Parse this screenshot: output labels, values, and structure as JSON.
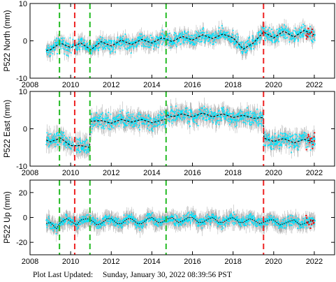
{
  "colors": {
    "observations": "#00e5ff",
    "error_bars": "#a9a9a9",
    "model_fit": "#000000",
    "recent_points": "#ff0000",
    "equipment_change_lines": "#22bb22",
    "earthquake_lines": "#ee2222",
    "frame": "#000000"
  },
  "chart_data": [
    {
      "type": "scatter",
      "station": "P522",
      "ylabel": "P522 North (mm)",
      "xlim": [
        2008,
        2023
      ],
      "ylim": [
        -10,
        10
      ],
      "yticks": [
        "10",
        "0",
        "-10"
      ],
      "xticks": [
        "2008",
        "2010",
        "2012",
        "2014",
        "2016",
        "2018",
        "2020",
        "2022"
      ],
      "grid": false,
      "series": [
        {
          "role": "model-fit",
          "style": "dashed",
          "x": [
            2008.8,
            2009.0,
            2009.5,
            2010.0,
            2010.5,
            2011.0,
            2011.5,
            2012.0,
            2012.5,
            2013.0,
            2013.5,
            2014.0,
            2014.5,
            2015.0,
            2015.5,
            2016.0,
            2016.5,
            2017.0,
            2017.5,
            2018.0,
            2018.5,
            2019.0,
            2019.5,
            2020.0,
            2020.5,
            2021.0,
            2021.5,
            2022.0
          ],
          "y": [
            -2.6,
            -2.4,
            -0.6,
            -1.8,
            -0.6,
            -2.4,
            -0.2,
            -1.4,
            0.2,
            -1.0,
            0.4,
            -0.6,
            0.8,
            -0.2,
            1.2,
            0.2,
            1.6,
            0.6,
            1.8,
            0.8,
            -2.2,
            -0.6,
            2.4,
            0.8,
            2.6,
            1.0,
            2.8,
            1.6
          ]
        },
        {
          "role": "observations",
          "spread": 1.6,
          "error": 1.6
        }
      ],
      "event_lines": [
        {
          "x": 2009.45,
          "kind": "equipment-change"
        },
        {
          "x": 2010.2,
          "kind": "earthquake"
        },
        {
          "x": 2010.95,
          "kind": "equipment-change"
        },
        {
          "x": 2014.7,
          "kind": "equipment-change"
        },
        {
          "x": 2019.5,
          "kind": "earthquake"
        }
      ]
    },
    {
      "type": "scatter",
      "station": "P522",
      "ylabel": "P522 East (mm)",
      "xlim": [
        2008,
        2023
      ],
      "ylim": [
        -10,
        10
      ],
      "yticks": [
        "10",
        "0",
        "-10"
      ],
      "xticks": [
        "2008",
        "2010",
        "2012",
        "2014",
        "2016",
        "2018",
        "2020",
        "2022"
      ],
      "grid": false,
      "series": [
        {
          "role": "model-fit",
          "style": "dashed",
          "x": [
            2008.8,
            2009.0,
            2009.5,
            2010.0,
            2010.5,
            2010.94,
            2010.96,
            2011.5,
            2012.0,
            2012.5,
            2013.0,
            2013.5,
            2014.0,
            2014.69,
            2014.71,
            2015.0,
            2015.5,
            2016.0,
            2016.5,
            2017.0,
            2017.5,
            2018.0,
            2018.5,
            2019.0,
            2019.49,
            2019.51,
            2020.0,
            2020.5,
            2021.0,
            2021.5,
            2022.0
          ],
          "y": [
            -3.0,
            -3.5,
            -2.5,
            -4.5,
            -4.5,
            -5.0,
            2.0,
            2.2,
            1.5,
            2.5,
            1.8,
            2.5,
            1.6,
            2.6,
            3.8,
            3.2,
            4.0,
            3.2,
            4.2,
            3.2,
            4.0,
            3.0,
            3.6,
            2.8,
            3.0,
            -2.5,
            -3.4,
            -2.6,
            -3.8,
            -2.8,
            -3.6
          ]
        },
        {
          "role": "observations",
          "spread": 1.8,
          "error": 2.0
        }
      ],
      "event_lines": [
        {
          "x": 2009.45,
          "kind": "equipment-change"
        },
        {
          "x": 2010.2,
          "kind": "earthquake"
        },
        {
          "x": 2010.95,
          "kind": "equipment-change"
        },
        {
          "x": 2014.7,
          "kind": "equipment-change"
        },
        {
          "x": 2019.5,
          "kind": "earthquake"
        }
      ]
    },
    {
      "type": "scatter",
      "station": "P522",
      "ylabel": "P522 Up (mm)",
      "xlim": [
        2008,
        2023
      ],
      "ylim": [
        -30,
        30
      ],
      "yticks": [
        "20",
        "0",
        "-20"
      ],
      "xticks": [
        "2008",
        "2010",
        "2012",
        "2014",
        "2016",
        "2018",
        "2020",
        "2022"
      ],
      "grid": false,
      "series": [
        {
          "role": "model-fit",
          "style": "dotted",
          "x": [
            2008.8,
            2009.0,
            2009.3,
            2009.5,
            2009.8,
            2010.0,
            2010.3,
            2010.5,
            2010.8,
            2011.0,
            2011.3,
            2011.5,
            2011.8,
            2012.0,
            2012.3,
            2012.5,
            2012.8,
            2013.0,
            2013.3,
            2013.5,
            2013.8,
            2014.0,
            2014.3,
            2014.5,
            2014.8,
            2015.0,
            2015.3,
            2015.5,
            2015.8,
            2016.0,
            2016.3,
            2016.5,
            2016.8,
            2017.0,
            2017.3,
            2017.5,
            2017.8,
            2018.0,
            2018.3,
            2018.5,
            2018.8,
            2019.0,
            2019.3,
            2019.5,
            2019.8,
            2020.0,
            2020.3,
            2020.5,
            2020.8,
            2021.0,
            2021.3,
            2021.5,
            2021.8,
            2022.0
          ],
          "y": [
            -5,
            -4,
            -9,
            -4,
            -1,
            -3,
            -6,
            -2,
            -1,
            -2,
            -6,
            -5,
            -1,
            -1,
            -5,
            -5,
            -1,
            -1,
            -5,
            -5,
            -1,
            0,
            -4,
            -4,
            -1,
            0,
            -4,
            -3,
            0,
            0,
            -4,
            -4,
            -1,
            0,
            -4,
            -4,
            -1,
            0,
            -4,
            -4,
            -1,
            -2,
            -5,
            -4,
            -2,
            -2,
            -6,
            -5,
            -3,
            -2,
            -6,
            -5,
            -3,
            -2
          ]
        },
        {
          "role": "observations",
          "spread": 3.5,
          "error": 5.5
        }
      ],
      "event_lines": [
        {
          "x": 2009.45,
          "kind": "equipment-change"
        },
        {
          "x": 2010.2,
          "kind": "earthquake"
        },
        {
          "x": 2010.95,
          "kind": "equipment-change"
        },
        {
          "x": 2014.7,
          "kind": "equipment-change"
        },
        {
          "x": 2019.5,
          "kind": "earthquake"
        }
      ]
    }
  ],
  "footer": {
    "label": "Plot Last Updated:",
    "timestamp": "Sunday, January 30, 2022 08:39:56 PST"
  }
}
